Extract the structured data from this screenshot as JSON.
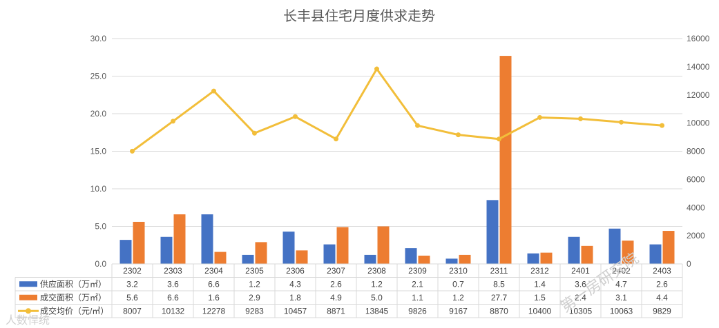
{
  "colors": {
    "supply": "#4472C4",
    "deal": "#ED7D31",
    "price": "#F2BE3A",
    "grid": "#D9D9D9"
  },
  "watermarks": [
    "第一房研究院",
    "人数悍统"
  ],
  "chart_data": {
    "type": "bar",
    "title": "长丰县住宅月度供求走势",
    "categories": [
      "2302",
      "2303",
      "2304",
      "2305",
      "2306",
      "2307",
      "2308",
      "2309",
      "2310",
      "2311",
      "2312",
      "2401",
      "2402",
      "2403"
    ],
    "y_left": {
      "min": 0,
      "max": 30,
      "step": 5,
      "tick_labels": [
        "0.0",
        "5.0",
        "10.0",
        "15.0",
        "20.0",
        "25.0",
        "30.0"
      ]
    },
    "y_right": {
      "min": 0,
      "max": 16000,
      "step": 2000,
      "tick_labels": [
        "0",
        "2000",
        "4000",
        "6000",
        "8000",
        "10000",
        "12000",
        "14000",
        "16000"
      ]
    },
    "series": [
      {
        "name": "供应面积（万㎡）",
        "type": "bar",
        "axis": "left",
        "values": [
          3.2,
          3.6,
          6.6,
          1.2,
          4.3,
          2.6,
          1.2,
          2.1,
          0.7,
          8.5,
          1.4,
          3.6,
          4.7,
          2.6
        ],
        "labels": [
          "3.2",
          "3.6",
          "6.6",
          "1.2",
          "4.3",
          "2.6",
          "1.2",
          "2.1",
          "0.7",
          "8.5",
          "1.4",
          "3.6",
          "4.7",
          "2.6"
        ]
      },
      {
        "name": "成交面积（万㎡）",
        "type": "bar",
        "axis": "left",
        "values": [
          5.6,
          6.6,
          1.6,
          2.9,
          1.8,
          4.9,
          5.0,
          1.1,
          1.2,
          27.7,
          1.5,
          2.4,
          3.1,
          4.4
        ],
        "labels": [
          "5.6",
          "6.6",
          "1.6",
          "2.9",
          "1.8",
          "4.9",
          "5.0",
          "1.1",
          "1.2",
          "27.7",
          "1.5",
          "2.4",
          "3.1",
          "4.4"
        ]
      },
      {
        "name": "成交均价（元/㎡）",
        "type": "line",
        "axis": "right",
        "values": [
          8007,
          10132,
          12278,
          9283,
          10457,
          8871,
          13845,
          9826,
          9167,
          8870,
          10400,
          10305,
          10063,
          9829
        ],
        "labels": [
          "8007",
          "10132",
          "12278",
          "9283",
          "10457",
          "8871",
          "13845",
          "9826",
          "9167",
          "8870",
          "10400",
          "10305",
          "10063",
          "9829"
        ]
      }
    ],
    "grid": true,
    "legend": "data-table"
  }
}
